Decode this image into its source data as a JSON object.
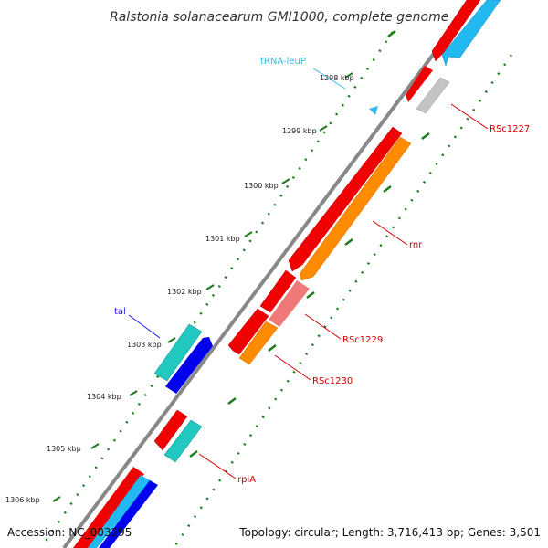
{
  "title": "Ralstonia solanacearum GMI1000, complete genome",
  "footer": {
    "accession": "Accession: NC_003295",
    "stats": "Topology: circular; Length: 3,716,413 bp; Genes: 3,501"
  },
  "ticks": [
    "1298 kbp",
    "1299 kbp",
    "1300 kbp",
    "1301 kbp",
    "1302 kbp",
    "1303 kbp",
    "1304 kbp",
    "1305 kbp",
    "1306 kbp"
  ],
  "labels": [
    {
      "text": "tRNA-leuP",
      "color": "#33bbe0"
    },
    {
      "text": "RSc1227",
      "color": "#d40000"
    },
    {
      "text": "rnr",
      "color": "#d40000"
    },
    {
      "text": "RSc1229",
      "color": "#d40000"
    },
    {
      "text": "RSc1230",
      "color": "#d40000"
    },
    {
      "text": "tal",
      "color": "#1a1aff"
    },
    {
      "text": "rpiA",
      "color": "#d40000"
    }
  ],
  "colors": {
    "backbone": "#7a7a7a",
    "tick": "#1e7a1e",
    "red": "#f00000",
    "orange": "#ff8c00",
    "sky": "#22b8f0",
    "blue": "#0000ee",
    "teal": "#20c8c0",
    "gray": "#c4c4c4",
    "pink": "#f07878",
    "trna": "#33bbee"
  }
}
